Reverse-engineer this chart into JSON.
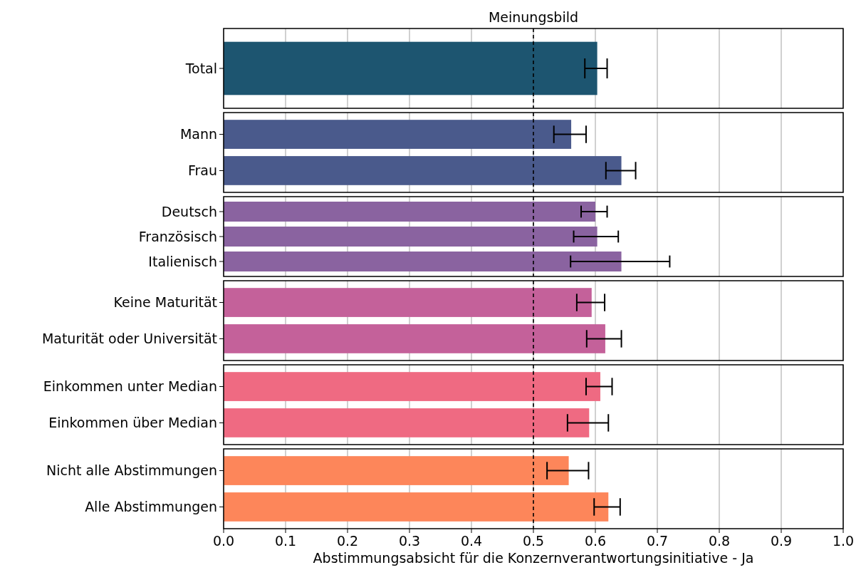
{
  "chart_data": [
    {
      "type": "bar",
      "orientation": "horizontal",
      "title": "Meinungsbild",
      "categories": [
        "Total"
      ],
      "values": [
        0.603
      ],
      "errors": [
        [
          0.583,
          0.619
        ]
      ],
      "color": "#1d5570",
      "xlim": [
        0,
        1
      ],
      "xticks": [
        0.0,
        0.1,
        0.2,
        0.3,
        0.4,
        0.5,
        0.6,
        0.7,
        0.8,
        0.9,
        1.0
      ],
      "grid": "x",
      "tick_labels": "y",
      "ref_lines": [
        {
          "axis": "x",
          "value": 0.5,
          "line_style": "dashed",
          "color": "#000000"
        }
      ]
    },
    {
      "type": "bar",
      "orientation": "horizontal",
      "categories": [
        "Mann",
        "Frau"
      ],
      "values": [
        0.561,
        0.642
      ],
      "errors": [
        [
          0.533,
          0.585
        ],
        [
          0.617,
          0.665
        ]
      ],
      "color": "#4a5a8c",
      "xlim": [
        0,
        1
      ],
      "xticks": [
        0.0,
        0.1,
        0.2,
        0.3,
        0.4,
        0.5,
        0.6,
        0.7,
        0.8,
        0.9,
        1.0
      ],
      "grid": "x",
      "tick_labels": "y",
      "ref_lines": [
        {
          "axis": "x",
          "value": 0.5,
          "line_style": "dashed",
          "color": "#000000"
        }
      ]
    },
    {
      "type": "bar",
      "orientation": "horizontal",
      "categories": [
        "Deutsch",
        "Französisch",
        "Italienisch"
      ],
      "values": [
        0.6,
        0.603,
        0.642
      ],
      "errors": [
        [
          0.577,
          0.619
        ],
        [
          0.565,
          0.637
        ],
        [
          0.56,
          0.72
        ]
      ],
      "color": "#8a63a0",
      "xlim": [
        0,
        1
      ],
      "xticks": [
        0.0,
        0.1,
        0.2,
        0.3,
        0.4,
        0.5,
        0.6,
        0.7,
        0.8,
        0.9,
        1.0
      ],
      "grid": "x",
      "tick_labels": "y",
      "ref_lines": [
        {
          "axis": "x",
          "value": 0.5,
          "line_style": "dashed",
          "color": "#000000"
        }
      ]
    },
    {
      "type": "bar",
      "orientation": "horizontal",
      "categories": [
        "Keine Maturität",
        "Maturität oder Universität"
      ],
      "values": [
        0.594,
        0.616
      ],
      "errors": [
        [
          0.57,
          0.615
        ],
        [
          0.586,
          0.642
        ]
      ],
      "color": "#c4619a",
      "xlim": [
        0,
        1
      ],
      "xticks": [
        0.0,
        0.1,
        0.2,
        0.3,
        0.4,
        0.5,
        0.6,
        0.7,
        0.8,
        0.9,
        1.0
      ],
      "grid": "x",
      "tick_labels": "y",
      "ref_lines": [
        {
          "axis": "x",
          "value": 0.5,
          "line_style": "dashed",
          "color": "#000000"
        }
      ]
    },
    {
      "type": "bar",
      "orientation": "horizontal",
      "categories": [
        "Einkommen unter Median",
        "Einkommen über Median"
      ],
      "values": [
        0.608,
        0.59
      ],
      "errors": [
        [
          0.585,
          0.627
        ],
        [
          0.555,
          0.621
        ]
      ],
      "color": "#ef6a82",
      "xlim": [
        0,
        1
      ],
      "xticks": [
        0.0,
        0.1,
        0.2,
        0.3,
        0.4,
        0.5,
        0.6,
        0.7,
        0.8,
        0.9,
        1.0
      ],
      "grid": "x",
      "tick_labels": "y",
      "ref_lines": [
        {
          "axis": "x",
          "value": 0.5,
          "line_style": "dashed",
          "color": "#000000"
        }
      ]
    },
    {
      "type": "bar",
      "orientation": "horizontal",
      "xlabel": "Abstimmungsabsicht für die Konzernverantwortungsinitiative - Ja",
      "categories": [
        "Nicht alle Abstimmungen",
        "Alle Abstimmungen"
      ],
      "values": [
        0.557,
        0.621
      ],
      "errors": [
        [
          0.522,
          0.589
        ],
        [
          0.598,
          0.64
        ]
      ],
      "color": "#fd865a",
      "xlim": [
        0,
        1
      ],
      "xticks": [
        {
          "value": 0.0,
          "label": "0.0"
        },
        0.1,
        0.2,
        0.3,
        0.4,
        0.5,
        0.6,
        0.7,
        0.8,
        0.9,
        {
          "value": 1.0,
          "label": "1.0"
        }
      ],
      "grid": "x",
      "ref_lines": [
        {
          "axis": "x",
          "value": 0.5,
          "line_style": "dashed",
          "color": "#000000"
        }
      ]
    }
  ]
}
